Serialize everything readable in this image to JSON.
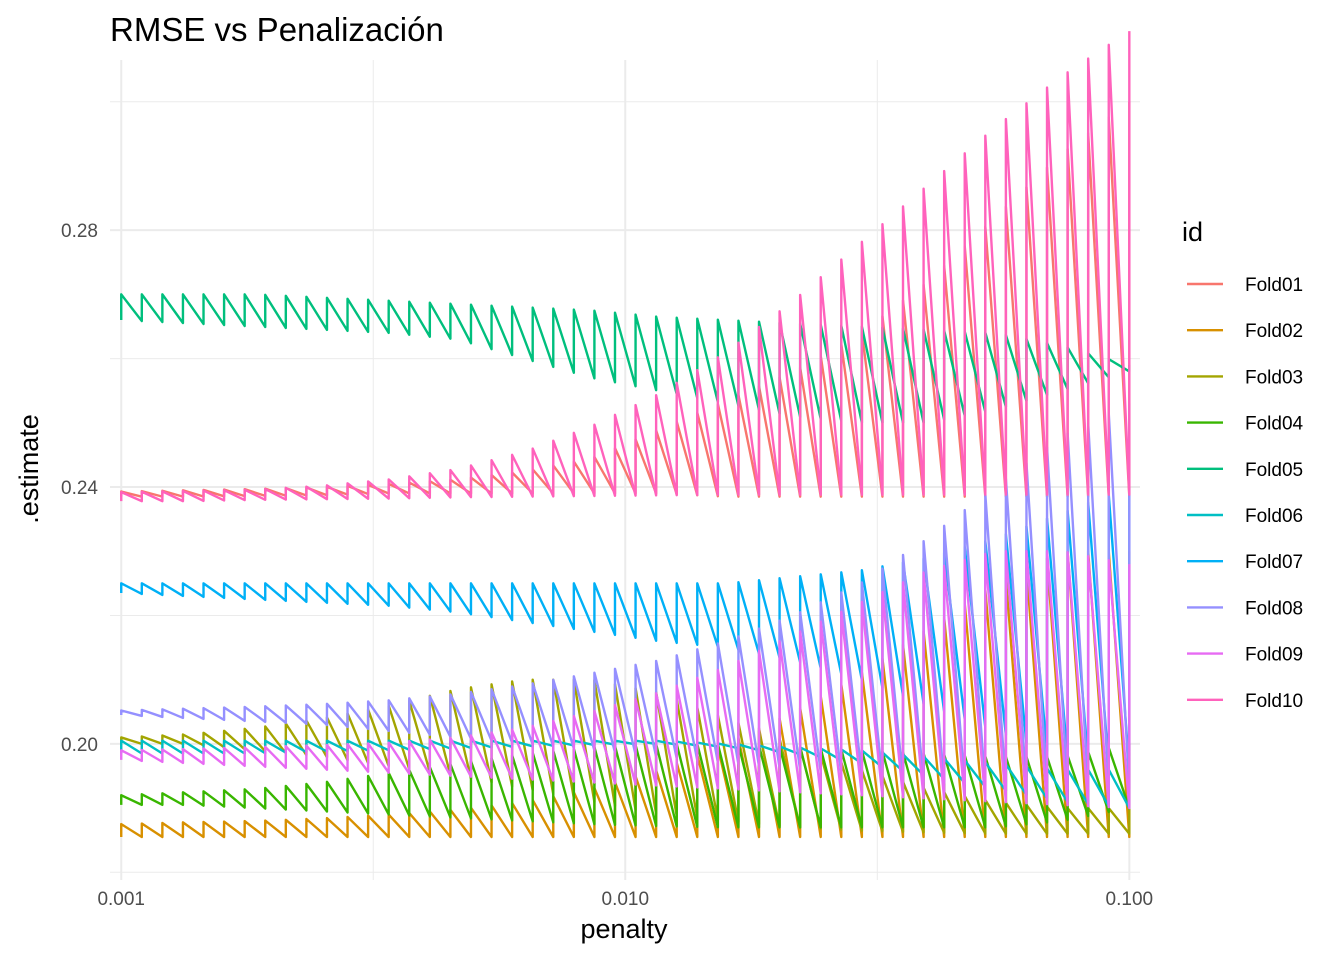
{
  "chart_data": {
    "type": "line",
    "title": "RMSE vs Penalización",
    "xlabel": "penalty",
    "ylabel": ".estimate",
    "x_scale": "log10",
    "xlim": [
      0.00095,
      0.105
    ],
    "ylim": [
      0.1788,
      0.3065
    ],
    "x_ticks": [
      0.001,
      0.01,
      0.1
    ],
    "x_tick_labels": [
      "0.001",
      "0.010",
      "0.100"
    ],
    "y_ticks": [
      0.2,
      0.24,
      0.28
    ],
    "y_tick_labels": [
      "0.20",
      "0.24",
      "0.28"
    ],
    "grid": true,
    "legend_title": "id",
    "legend_position": "right",
    "n_penalty_values": 50,
    "penalty_range": [
      0.001,
      0.1
    ],
    "notes": "Each fold line oscillates between the lower and upper value at each penalty.",
    "series": [
      {
        "name": "Fold01",
        "color": "#F8766D",
        "low": [
          0.2385,
          0.2385,
          0.2386,
          0.2387,
          0.239,
          0.239,
          0.239,
          0.239,
          0.239,
          0.2385,
          0.2385,
          0.2385,
          0.2385,
          0.2385,
          0.2385,
          0.2385
        ],
        "high": [
          0.2393,
          0.2395,
          0.2397,
          0.24,
          0.2405,
          0.2412,
          0.2425,
          0.2445,
          0.249,
          0.2535,
          0.258,
          0.264,
          0.272,
          0.282,
          0.292,
          0.3
        ]
      },
      {
        "name": "Fold02",
        "color": "#D89000",
        "low": [
          0.1855,
          0.1855,
          0.1855,
          0.1855,
          0.1855,
          0.1855,
          0.1855,
          0.1855,
          0.1855,
          0.1855,
          0.1855,
          0.1855,
          0.1855,
          0.1855,
          0.1855,
          0.1855
        ],
        "high": [
          0.1875,
          0.1878,
          0.188,
          0.1884,
          0.189,
          0.1898,
          0.191,
          0.193,
          0.196,
          0.2,
          0.205,
          0.211,
          0.218,
          0.225,
          0.23,
          0.23
        ]
      },
      {
        "name": "Fold03",
        "color": "#A3A500",
        "low": [
          0.2,
          0.2,
          0.199,
          0.198,
          0.1965,
          0.195,
          0.193,
          0.191,
          0.189,
          0.188,
          0.187,
          0.1865,
          0.1862,
          0.186,
          0.186,
          0.186
        ],
        "high": [
          0.201,
          0.2015,
          0.2025,
          0.204,
          0.206,
          0.2085,
          0.21,
          0.21,
          0.208,
          0.204,
          0.2,
          0.196,
          0.193,
          0.191,
          0.19,
          0.19
        ]
      },
      {
        "name": "Fold04",
        "color": "#39B600",
        "low": [
          0.1905,
          0.1905,
          0.19,
          0.1895,
          0.189,
          0.1885,
          0.188,
          0.1875,
          0.1872,
          0.187,
          0.187,
          0.187,
          0.187,
          0.187,
          0.188,
          0.19
        ],
        "high": [
          0.192,
          0.1925,
          0.193,
          0.194,
          0.1955,
          0.197,
          0.1985,
          0.1995,
          0.2,
          0.2,
          0.1995,
          0.199,
          0.1985,
          0.198,
          0.198,
          0.2
        ]
      },
      {
        "name": "Fold05",
        "color": "#00BF7D",
        "low": [
          0.266,
          0.2655,
          0.265,
          0.2645,
          0.264,
          0.263,
          0.26,
          0.257,
          0.255,
          0.253,
          0.251,
          0.25,
          0.25,
          0.252,
          0.255,
          0.258
        ],
        "high": [
          0.27,
          0.27,
          0.27,
          0.2695,
          0.269,
          0.2685,
          0.268,
          0.2675,
          0.2665,
          0.266,
          0.2655,
          0.265,
          0.2645,
          0.264,
          0.262,
          0.259
        ]
      },
      {
        "name": "Fold06",
        "color": "#00BFC4",
        "low": [
          0.1985,
          0.1985,
          0.1985,
          0.1988,
          0.199,
          0.1993,
          0.1996,
          0.1998,
          0.2,
          0.1995,
          0.1985,
          0.197,
          0.195,
          0.193,
          0.191,
          0.19
        ],
        "high": [
          0.2005,
          0.2005,
          0.2005,
          0.2005,
          0.2005,
          0.2005,
          0.2005,
          0.2005,
          0.2005,
          0.2,
          0.1995,
          0.199,
          0.198,
          0.197,
          0.196,
          0.196
        ]
      },
      {
        "name": "Fold07",
        "color": "#00B0F6",
        "low": [
          0.2235,
          0.223,
          0.2225,
          0.222,
          0.2215,
          0.2205,
          0.219,
          0.2175,
          0.216,
          0.215,
          0.213,
          0.21,
          0.206,
          0.202,
          0.198,
          0.196
        ],
        "high": [
          0.225,
          0.225,
          0.225,
          0.225,
          0.225,
          0.225,
          0.225,
          0.225,
          0.225,
          0.225,
          0.226,
          0.227,
          0.229,
          0.232,
          0.236,
          0.24
        ]
      },
      {
        "name": "Fold08",
        "color": "#9590FF",
        "low": [
          0.2045,
          0.204,
          0.2035,
          0.203,
          0.202,
          0.201,
          0.2,
          0.199,
          0.198,
          0.197,
          0.196,
          0.195,
          0.194,
          0.1935,
          0.193,
          0.193
        ],
        "high": [
          0.2052,
          0.2055,
          0.2058,
          0.2062,
          0.2068,
          0.2078,
          0.2092,
          0.211,
          0.213,
          0.216,
          0.22,
          0.225,
          0.232,
          0.24,
          0.248,
          0.253
        ]
      },
      {
        "name": "Fold09",
        "color": "#E76BF3",
        "low": [
          0.1975,
          0.197,
          0.1965,
          0.196,
          0.1955,
          0.195,
          0.1945,
          0.194,
          0.1935,
          0.193,
          0.1925,
          0.192,
          0.1915,
          0.191,
          0.1905,
          0.19
        ],
        "high": [
          0.199,
          0.1992,
          0.1995,
          0.1998,
          0.2002,
          0.201,
          0.2025,
          0.205,
          0.208,
          0.212,
          0.217,
          0.222,
          0.227,
          0.23,
          0.23,
          0.228
        ]
      },
      {
        "name": "Fold10",
        "color": "#FF62BC",
        "low": [
          0.2378,
          0.2378,
          0.238,
          0.2381,
          0.2382,
          0.2384,
          0.2385,
          0.2386,
          0.2387,
          0.2388,
          0.2388,
          0.2388,
          0.2388,
          0.2388,
          0.2388,
          0.2388
        ],
        "high": [
          0.2392,
          0.2394,
          0.2396,
          0.2402,
          0.2412,
          0.2428,
          0.2455,
          0.2495,
          0.2545,
          0.261,
          0.269,
          0.278,
          0.287,
          0.296,
          0.304,
          0.311
        ]
      }
    ]
  }
}
